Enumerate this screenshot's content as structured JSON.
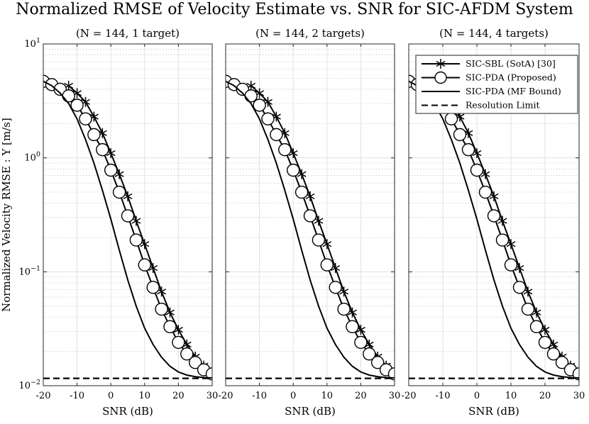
{
  "title": "Normalized RMSE of Velocity Estimate vs. SNR for SIC-AFDM System",
  "ylabel": "Normalized Velocity RMSE : Υ [m/s]",
  "xlabel": "SNR (dB)",
  "colors": {
    "line": "#000000",
    "grid": "#e0e0e0",
    "marker_fill": "#ffffff"
  },
  "chart_data": [
    {
      "type": "line",
      "title": "(N = 144, 1 target)",
      "xlim": [
        -20,
        30
      ],
      "ylim": [
        0.01,
        10
      ],
      "yscale": "log",
      "xticks": [
        -20,
        -10,
        0,
        10,
        20,
        30
      ],
      "xtick_labels": [
        "-20",
        "-10",
        "0",
        "10",
        "20",
        "30"
      ],
      "grid": true,
      "legend": "none",
      "series": [
        {
          "name": "SIC-SBL (SotA) [30]",
          "marker": "asterisk",
          "linestyle": "solid",
          "x": [
            -12.5,
            -10,
            -7.5,
            -5,
            -2.5,
            0,
            2.5,
            5,
            7.5,
            10,
            12.5,
            15,
            17.5,
            20,
            22.5,
            25,
            27.5
          ],
          "y": [
            4.3,
            3.7,
            3.1,
            2.3,
            1.65,
            1.1,
            0.72,
            0.46,
            0.28,
            0.175,
            0.108,
            0.067,
            0.044,
            0.031,
            0.023,
            0.018,
            0.015
          ]
        },
        {
          "name": "SIC-PDA (Proposed)",
          "marker": "circle",
          "linestyle": "solid",
          "x": [
            -20,
            -17.5,
            -15,
            -12.5,
            -10,
            -7.5,
            -5,
            -2.5,
            0,
            2.5,
            5,
            7.5,
            10,
            12.5,
            15,
            17.5,
            20,
            22.5,
            25,
            27.5,
            30
          ],
          "y": [
            4.7,
            4.4,
            4.0,
            3.5,
            2.9,
            2.2,
            1.6,
            1.18,
            0.78,
            0.5,
            0.31,
            0.19,
            0.115,
            0.073,
            0.047,
            0.033,
            0.024,
            0.019,
            0.016,
            0.0138,
            0.0127
          ]
        },
        {
          "name": "SIC-PDA (MF Bound)",
          "marker": "none",
          "linestyle": "solid",
          "x": [
            -20,
            -17.5,
            -15,
            -12.5,
            -10,
            -7.5,
            -5,
            -2.5,
            0,
            2.5,
            5,
            7.5,
            10,
            12.5,
            15,
            17.5,
            20,
            22.5,
            25,
            27.5,
            30
          ],
          "y": [
            4.7,
            4.3,
            3.7,
            3.0,
            2.2,
            1.45,
            0.9,
            0.52,
            0.29,
            0.155,
            0.085,
            0.05,
            0.032,
            0.023,
            0.0178,
            0.0148,
            0.0132,
            0.0124,
            0.012,
            0.0118,
            0.0117
          ]
        },
        {
          "name": "Resolution Limit",
          "marker": "none",
          "linestyle": "dashed",
          "x": [
            -20,
            30
          ],
          "y": [
            0.0116,
            0.0116
          ]
        }
      ]
    },
    {
      "type": "line",
      "title": "(N = 144, 2 targets)",
      "xlim": [
        -20,
        30
      ],
      "ylim": [
        0.01,
        10
      ],
      "yscale": "log",
      "xticks": [
        -20,
        -10,
        0,
        10,
        20,
        30
      ],
      "xtick_labels": [
        "-20",
        "-10",
        "0",
        "10",
        "20",
        "30"
      ],
      "grid": true,
      "legend": "none",
      "series": [
        {
          "name": "SIC-SBL (SotA) [30]",
          "marker": "asterisk",
          "linestyle": "solid",
          "x": [
            -12.5,
            -10,
            -7.5,
            -5,
            -2.5,
            0,
            2.5,
            5,
            7.5,
            10,
            12.5,
            15,
            17.5,
            20,
            22.5,
            25,
            27.5
          ],
          "y": [
            4.3,
            3.7,
            3.1,
            2.3,
            1.65,
            1.1,
            0.72,
            0.46,
            0.28,
            0.175,
            0.108,
            0.067,
            0.044,
            0.031,
            0.023,
            0.018,
            0.015
          ]
        },
        {
          "name": "SIC-PDA (Proposed)",
          "marker": "circle",
          "linestyle": "solid",
          "x": [
            -20,
            -17.5,
            -15,
            -12.5,
            -10,
            -7.5,
            -5,
            -2.5,
            0,
            2.5,
            5,
            7.5,
            10,
            12.5,
            15,
            17.5,
            20,
            22.5,
            25,
            27.5,
            30
          ],
          "y": [
            4.7,
            4.4,
            4.0,
            3.5,
            2.9,
            2.2,
            1.6,
            1.18,
            0.78,
            0.5,
            0.31,
            0.19,
            0.115,
            0.073,
            0.047,
            0.033,
            0.024,
            0.019,
            0.016,
            0.0138,
            0.0127
          ]
        },
        {
          "name": "SIC-PDA (MF Bound)",
          "marker": "none",
          "linestyle": "solid",
          "x": [
            -20,
            -17.5,
            -15,
            -12.5,
            -10,
            -7.5,
            -5,
            -2.5,
            0,
            2.5,
            5,
            7.5,
            10,
            12.5,
            15,
            17.5,
            20,
            22.5,
            25,
            27.5,
            30
          ],
          "y": [
            4.7,
            4.3,
            3.7,
            3.0,
            2.2,
            1.45,
            0.9,
            0.52,
            0.29,
            0.155,
            0.085,
            0.05,
            0.032,
            0.023,
            0.0178,
            0.0148,
            0.0132,
            0.0124,
            0.012,
            0.0118,
            0.0117
          ]
        },
        {
          "name": "Resolution Limit",
          "marker": "none",
          "linestyle": "dashed",
          "x": [
            -20,
            30
          ],
          "y": [
            0.0116,
            0.0116
          ]
        }
      ]
    },
    {
      "type": "line",
      "title": "(N = 144, 4 targets)",
      "xlim": [
        -20,
        30
      ],
      "ylim": [
        0.01,
        10
      ],
      "yscale": "log",
      "xticks": [
        -20,
        -10,
        0,
        10,
        20,
        30
      ],
      "xtick_labels": [
        "-20",
        "-10",
        "0",
        "10",
        "20",
        "30"
      ],
      "grid": true,
      "legend": "top-right",
      "series": [
        {
          "name": "SIC-SBL (SotA) [30]",
          "marker": "asterisk",
          "linestyle": "solid",
          "x": [
            -12.5,
            -10,
            -7.5,
            -5,
            -2.5,
            0,
            2.5,
            5,
            7.5,
            10,
            12.5,
            15,
            17.5,
            20,
            22.5,
            25,
            27.5
          ],
          "y": [
            4.3,
            3.7,
            3.1,
            2.3,
            1.65,
            1.1,
            0.72,
            0.46,
            0.28,
            0.175,
            0.108,
            0.067,
            0.044,
            0.031,
            0.023,
            0.018,
            0.015
          ]
        },
        {
          "name": "SIC-PDA (Proposed)",
          "marker": "circle",
          "linestyle": "solid",
          "x": [
            -20,
            -17.5,
            -15,
            -12.5,
            -10,
            -7.5,
            -5,
            -2.5,
            0,
            2.5,
            5,
            7.5,
            10,
            12.5,
            15,
            17.5,
            20,
            22.5,
            25,
            27.5,
            30
          ],
          "y": [
            4.7,
            4.4,
            4.0,
            3.5,
            2.9,
            2.2,
            1.6,
            1.18,
            0.78,
            0.5,
            0.31,
            0.19,
            0.115,
            0.073,
            0.047,
            0.033,
            0.024,
            0.019,
            0.016,
            0.0138,
            0.0127
          ]
        },
        {
          "name": "SIC-PDA (MF Bound)",
          "marker": "none",
          "linestyle": "solid",
          "x": [
            -20,
            -17.5,
            -15,
            -12.5,
            -10,
            -7.5,
            -5,
            -2.5,
            0,
            2.5,
            5,
            7.5,
            10,
            12.5,
            15,
            17.5,
            20,
            22.5,
            25,
            27.5,
            30
          ],
          "y": [
            4.7,
            4.3,
            3.7,
            3.0,
            2.2,
            1.45,
            0.9,
            0.52,
            0.29,
            0.155,
            0.085,
            0.05,
            0.032,
            0.023,
            0.0178,
            0.0148,
            0.0132,
            0.0124,
            0.012,
            0.0118,
            0.0117
          ]
        },
        {
          "name": "Resolution Limit",
          "marker": "none",
          "linestyle": "dashed",
          "x": [
            -20,
            30
          ],
          "y": [
            0.0116,
            0.0116
          ]
        }
      ]
    }
  ]
}
